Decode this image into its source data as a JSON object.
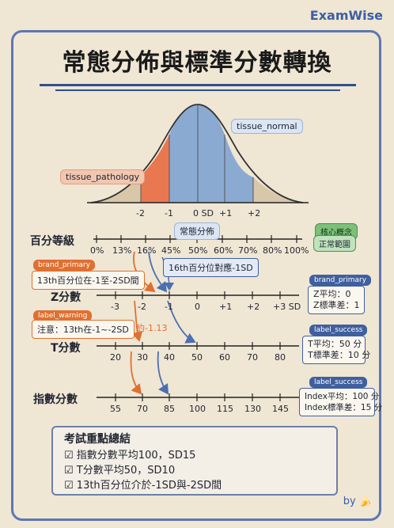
{
  "brand": "ExamWise",
  "title": "常態分佈與標準分數轉換",
  "curve": {
    "tissue_normal": "tissue_normal",
    "tissue_pathology": "tissue_pathology",
    "ticks": [
      "-2",
      "-1",
      "0 SD",
      "+1",
      "+2"
    ],
    "axis_label": "常態分佈"
  },
  "percentile": {
    "label": "百分等級",
    "ticks": [
      "0%",
      "13%",
      "16%",
      "45%",
      "50%",
      "60%",
      "70%",
      "80%",
      "100%"
    ],
    "concept_tag": "核心概念",
    "concept_value": "正常範圍"
  },
  "z": {
    "label": "Z分數",
    "ticks": [
      "-3",
      "-2",
      "-1",
      "0",
      "+1",
      "+2",
      "+3 SD"
    ],
    "tag": "brand_primary",
    "info1": "Z平均：0",
    "info2": "Z標準差：1"
  },
  "t": {
    "label": "T分數",
    "ticks": [
      "20",
      "30",
      "40",
      "50",
      "60",
      "70",
      "80"
    ],
    "tag": "label_success",
    "info1": "T平均：50 分",
    "info2": "T標準差：10 分"
  },
  "index": {
    "label": "指數分數",
    "ticks": [
      "55",
      "70",
      "85",
      "100",
      "115",
      "130",
      "145"
    ],
    "tag": "label_success",
    "info1": "Index平均：100 分",
    "info2": "Index標準差：15 分"
  },
  "annotations": {
    "primary_tag": "brand_primary",
    "primary_text": "13th百分位在-1至-2SD間",
    "pct_note": "16th百分位對應-1SD",
    "warning_tag": "label_warning",
    "warning_text": "注意：13th在-1~-2SD",
    "approx": "約-1.13"
  },
  "summary": {
    "heading": "考試重點總結",
    "items": [
      "指數分數平均100，SD15",
      "T分數平均50，SD10",
      "13th百分位介於-1SD與-2SD間"
    ]
  },
  "byline": "by",
  "colors": {
    "blue": "#7fa3d1",
    "orange": "#e8643a",
    "tan": "#d6c8ae"
  }
}
